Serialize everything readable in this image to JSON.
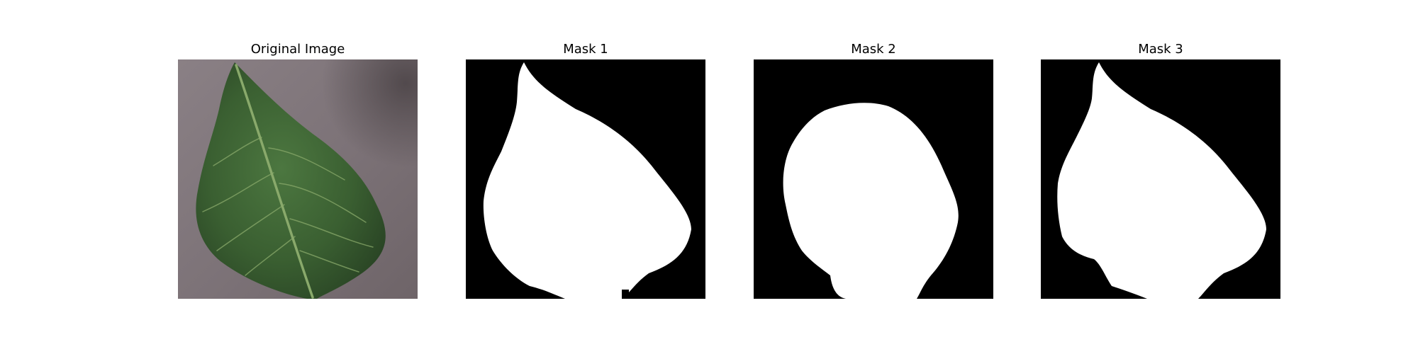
{
  "panels": [
    {
      "title": "Original Image"
    },
    {
      "title": "Mask 1"
    },
    {
      "title": "Mask 2"
    },
    {
      "title": "Mask 3"
    }
  ],
  "colors": {
    "mask_background": "#000000",
    "mask_foreground": "#ffffff",
    "surface": "#7d7478",
    "leaf_dark": "#2f4d29",
    "leaf_mid": "#3f6535",
    "leaf_light": "#5f8a4f",
    "vein": "#9fbe7d"
  }
}
